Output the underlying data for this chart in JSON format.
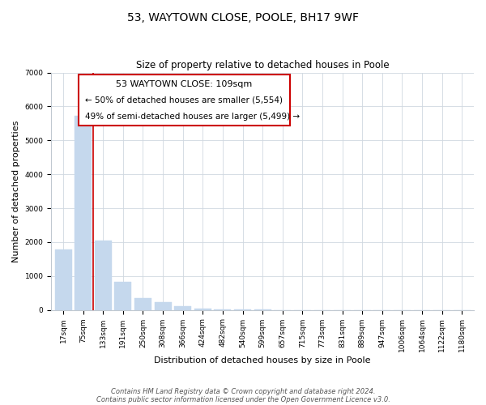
{
  "title": "53, WAYTOWN CLOSE, POOLE, BH17 9WF",
  "subtitle": "Size of property relative to detached houses in Poole",
  "xlabel": "Distribution of detached houses by size in Poole",
  "ylabel": "Number of detached properties",
  "bar_labels": [
    "17sqm",
    "75sqm",
    "133sqm",
    "191sqm",
    "250sqm",
    "308sqm",
    "366sqm",
    "424sqm",
    "482sqm",
    "540sqm",
    "599sqm",
    "657sqm",
    "715sqm",
    "773sqm",
    "831sqm",
    "889sqm",
    "947sqm",
    "1006sqm",
    "1064sqm",
    "1122sqm",
    "1180sqm"
  ],
  "bar_values": [
    1780,
    5730,
    2050,
    830,
    360,
    220,
    100,
    50,
    20,
    10,
    5,
    2,
    1,
    0,
    0,
    0,
    0,
    0,
    0,
    0,
    0
  ],
  "bar_color": "#c5d8ed",
  "vline_x": 1.5,
  "property_line_label": "53 WAYTOWN CLOSE: 109sqm",
  "annotation_line1": "← 50% of detached houses are smaller (5,554)",
  "annotation_line2": "49% of semi-detached houses are larger (5,499) →",
  "vline_color": "#cc0000",
  "box_edgecolor": "#cc0000",
  "footer_line1": "Contains HM Land Registry data © Crown copyright and database right 2024.",
  "footer_line2": "Contains public sector information licensed under the Open Government Licence v3.0.",
  "ylim": [
    0,
    7000
  ],
  "title_fontsize": 10,
  "subtitle_fontsize": 8.5,
  "axis_label_fontsize": 8,
  "tick_fontsize": 6.5,
  "footer_fontsize": 6,
  "annotation_title_fontsize": 8,
  "annotation_text_fontsize": 7.5
}
